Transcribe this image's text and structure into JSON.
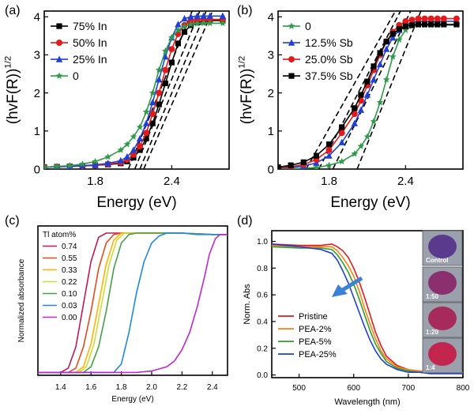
{
  "chart_data": [
    {
      "panel": "(a)",
      "type": "line",
      "xlabel": "Energy (eV)",
      "ylabel": "(hvF(R))",
      "ylabel_sup": "1/2",
      "xlim": [
        1.4,
        2.85
      ],
      "ylim": [
        0,
        4.15
      ],
      "xticks": [
        1.8,
        2.4
      ],
      "yticks": [
        0,
        1,
        2,
        3,
        4
      ],
      "legend_position": "top-left",
      "series": [
        {
          "name": "75% In",
          "color": "#000000",
          "marker": "square",
          "x": [
            1.4,
            1.5,
            1.6,
            1.7,
            1.8,
            1.9,
            2.0,
            2.05,
            2.1,
            2.15,
            2.2,
            2.25,
            2.3,
            2.35,
            2.4,
            2.45,
            2.5,
            2.55,
            2.6,
            2.65,
            2.7,
            2.8
          ],
          "y": [
            0.05,
            0.06,
            0.07,
            0.08,
            0.1,
            0.12,
            0.15,
            0.2,
            0.3,
            0.5,
            0.8,
            1.2,
            1.7,
            2.25,
            2.8,
            3.3,
            3.6,
            3.78,
            3.85,
            3.88,
            3.9,
            3.9
          ]
        },
        {
          "name": "50% In",
          "color": "#e31a1c",
          "marker": "circle",
          "x": [
            1.4,
            1.5,
            1.6,
            1.7,
            1.8,
            1.9,
            2.0,
            2.05,
            2.1,
            2.15,
            2.2,
            2.25,
            2.3,
            2.35,
            2.4,
            2.45,
            2.5,
            2.55,
            2.6,
            2.65,
            2.7,
            2.8
          ],
          "y": [
            0.05,
            0.06,
            0.07,
            0.08,
            0.1,
            0.13,
            0.17,
            0.25,
            0.38,
            0.6,
            0.95,
            1.45,
            2.0,
            2.6,
            3.15,
            3.55,
            3.78,
            3.88,
            3.92,
            3.93,
            3.93,
            3.93
          ]
        },
        {
          "name": "25% In",
          "color": "#1f3fd6",
          "marker": "triangle",
          "x": [
            1.4,
            1.5,
            1.6,
            1.7,
            1.8,
            1.9,
            2.0,
            2.05,
            2.1,
            2.15,
            2.2,
            2.25,
            2.3,
            2.35,
            2.4,
            2.45,
            2.5,
            2.55,
            2.6,
            2.65,
            2.7,
            2.8
          ],
          "y": [
            0.05,
            0.06,
            0.07,
            0.09,
            0.11,
            0.15,
            0.22,
            0.32,
            0.5,
            0.8,
            1.2,
            1.75,
            2.35,
            2.95,
            3.45,
            3.8,
            3.95,
            4.0,
            4.02,
            4.02,
            4.02,
            4.02
          ]
        },
        {
          "name": "0",
          "color": "#2e9b4a",
          "marker": "star",
          "x": [
            1.4,
            1.5,
            1.6,
            1.7,
            1.8,
            1.9,
            2.0,
            2.05,
            2.1,
            2.15,
            2.2,
            2.25,
            2.3,
            2.35,
            2.4,
            2.45,
            2.5,
            2.55,
            2.6,
            2.65,
            2.7,
            2.8
          ],
          "y": [
            0.05,
            0.07,
            0.09,
            0.13,
            0.2,
            0.32,
            0.5,
            0.65,
            0.85,
            1.1,
            1.5,
            2.0,
            2.6,
            3.1,
            3.45,
            3.65,
            3.75,
            3.8,
            3.82,
            3.83,
            3.83,
            3.83
          ]
        }
      ],
      "fit_lines": [
        {
          "x": [
            2.18,
            2.72
          ],
          "y": [
            0,
            4.15
          ]
        },
        {
          "x": [
            2.15,
            2.67
          ],
          "y": [
            0,
            4.15
          ]
        },
        {
          "x": [
            2.11,
            2.62
          ],
          "y": [
            0,
            4.15
          ]
        },
        {
          "x": [
            2.06,
            2.56
          ],
          "y": [
            0,
            4.15
          ]
        }
      ]
    },
    {
      "panel": "(b)",
      "type": "line",
      "xlabel": "Energy (eV)",
      "ylabel": "(hvF(R))",
      "ylabel_sup": "1/2",
      "xlim": [
        1.4,
        2.85
      ],
      "ylim": [
        0,
        4.15
      ],
      "xticks": [
        1.8,
        2.4
      ],
      "yticks": [
        0,
        1,
        2,
        3,
        4
      ],
      "legend_position": "top-left",
      "series": [
        {
          "name": "0",
          "color": "#2e9b4a",
          "marker": "star",
          "x": [
            1.4,
            1.5,
            1.6,
            1.7,
            1.8,
            1.9,
            2.0,
            2.05,
            2.1,
            2.15,
            2.2,
            2.25,
            2.3,
            2.35,
            2.4,
            2.45,
            2.5,
            2.55,
            2.6,
            2.65,
            2.7,
            2.8
          ],
          "y": [
            0.0,
            0.01,
            0.02,
            0.04,
            0.1,
            0.2,
            0.4,
            0.6,
            0.85,
            1.25,
            1.75,
            2.35,
            2.95,
            3.4,
            3.65,
            3.75,
            3.78,
            3.78,
            3.78,
            3.78,
            3.78,
            3.78
          ]
        },
        {
          "name": "12.5% Sb",
          "color": "#1f3fd6",
          "marker": "triangle",
          "x": [
            1.4,
            1.5,
            1.6,
            1.7,
            1.8,
            1.9,
            2.0,
            2.05,
            2.1,
            2.15,
            2.2,
            2.25,
            2.3,
            2.35,
            2.4,
            2.45,
            2.5,
            2.55,
            2.6,
            2.65,
            2.7,
            2.8
          ],
          "y": [
            0.02,
            0.04,
            0.08,
            0.16,
            0.35,
            0.7,
            1.2,
            1.55,
            1.95,
            2.35,
            2.75,
            3.15,
            3.45,
            3.65,
            3.78,
            3.85,
            3.88,
            3.88,
            3.88,
            3.88,
            3.88,
            3.88
          ]
        },
        {
          "name": "25.0% Sb",
          "color": "#e31a1c",
          "marker": "circle",
          "x": [
            1.4,
            1.5,
            1.6,
            1.7,
            1.8,
            1.9,
            2.0,
            2.05,
            2.1,
            2.15,
            2.2,
            2.25,
            2.3,
            2.35,
            2.4,
            2.45,
            2.5,
            2.55,
            2.6,
            2.65,
            2.7,
            2.8
          ],
          "y": [
            0.03,
            0.06,
            0.12,
            0.25,
            0.5,
            0.95,
            1.45,
            1.8,
            2.2,
            2.6,
            3.0,
            3.35,
            3.6,
            3.78,
            3.88,
            3.92,
            3.95,
            3.95,
            3.95,
            3.95,
            3.95,
            3.95
          ]
        },
        {
          "name": "37.5% Sb",
          "color": "#000000",
          "marker": "square",
          "x": [
            1.4,
            1.5,
            1.6,
            1.7,
            1.8,
            1.9,
            2.0,
            2.05,
            2.1,
            2.15,
            2.2,
            2.25,
            2.3,
            2.35,
            2.4,
            2.45,
            2.5,
            2.55,
            2.6,
            2.65,
            2.7,
            2.8
          ],
          "y": [
            0.05,
            0.1,
            0.18,
            0.35,
            0.65,
            1.1,
            1.6,
            1.95,
            2.3,
            2.7,
            3.05,
            3.35,
            3.55,
            3.68,
            3.75,
            3.78,
            3.8,
            3.8,
            3.8,
            3.8,
            3.8,
            3.8
          ]
        }
      ],
      "fit_lines": [
        {
          "x": [
            1.62,
            2.32
          ],
          "y": [
            0,
            4.15
          ]
        },
        {
          "x": [
            1.72,
            2.36
          ],
          "y": [
            0,
            4.15
          ]
        },
        {
          "x": [
            1.83,
            2.44
          ],
          "y": [
            0,
            4.15
          ]
        },
        {
          "x": [
            2.02,
            2.52
          ],
          "y": [
            0,
            4.15
          ]
        }
      ]
    },
    {
      "panel": "(c)",
      "type": "line",
      "xlabel": "Energy (eV)",
      "ylabel": "Normalized absorbance",
      "xlim": [
        1.25,
        2.5
      ],
      "ylim": [
        0,
        1.05
      ],
      "xticks": [
        1.4,
        1.6,
        1.8,
        2.0,
        2.2,
        2.4
      ],
      "yticks": [],
      "legend_title": "Tl atom%",
      "legend_position": "top-left",
      "series": [
        {
          "name": "0.74",
          "color": "#c2185b",
          "x": [
            1.25,
            1.4,
            1.45,
            1.5,
            1.55,
            1.6,
            1.65,
            1.7,
            1.75,
            1.8,
            2.0,
            2.2,
            2.4,
            2.5
          ],
          "y": [
            0.02,
            0.02,
            0.05,
            0.2,
            0.5,
            0.8,
            0.97,
            1.0,
            1.0,
            1.0,
            1.0,
            1.0,
            0.99,
            0.99
          ]
        },
        {
          "name": "0.55",
          "color": "#e64a19",
          "x": [
            1.25,
            1.45,
            1.5,
            1.55,
            1.6,
            1.65,
            1.7,
            1.75,
            1.8,
            1.85,
            2.0,
            2.2,
            2.4,
            2.5
          ],
          "y": [
            0.02,
            0.02,
            0.05,
            0.2,
            0.45,
            0.75,
            0.93,
            0.99,
            1.0,
            1.0,
            1.0,
            1.0,
            0.99,
            0.99
          ]
        },
        {
          "name": "0.33",
          "color": "#ffb300",
          "x": [
            1.25,
            1.5,
            1.55,
            1.6,
            1.65,
            1.7,
            1.75,
            1.8,
            1.85,
            1.9,
            2.0,
            2.2,
            2.4,
            2.5
          ],
          "y": [
            0.02,
            0.02,
            0.06,
            0.22,
            0.5,
            0.78,
            0.95,
            1.0,
            1.0,
            1.0,
            1.0,
            1.0,
            0.99,
            0.99
          ]
        },
        {
          "name": "0.22",
          "color": "#cddc39",
          "x": [
            1.25,
            1.52,
            1.57,
            1.62,
            1.67,
            1.72,
            1.77,
            1.82,
            1.87,
            1.92,
            2.0,
            2.2,
            2.4,
            2.5
          ],
          "y": [
            0.02,
            0.02,
            0.06,
            0.22,
            0.5,
            0.78,
            0.95,
            1.0,
            1.0,
            1.0,
            1.0,
            1.0,
            0.99,
            0.99
          ]
        },
        {
          "name": "0.10",
          "color": "#43a047",
          "x": [
            1.25,
            1.55,
            1.6,
            1.65,
            1.7,
            1.75,
            1.8,
            1.85,
            1.9,
            1.95,
            2.05,
            2.2,
            2.4,
            2.5
          ],
          "y": [
            0.02,
            0.02,
            0.06,
            0.2,
            0.45,
            0.75,
            0.93,
            0.99,
            1.0,
            1.0,
            1.0,
            1.0,
            0.99,
            0.99
          ]
        },
        {
          "name": "0.03",
          "color": "#1e88e5",
          "x": [
            1.25,
            1.75,
            1.8,
            1.85,
            1.9,
            1.95,
            2.0,
            2.05,
            2.1,
            2.15,
            2.2,
            2.3,
            2.4,
            2.5
          ],
          "y": [
            0.02,
            0.02,
            0.08,
            0.3,
            0.58,
            0.8,
            0.93,
            0.98,
            1.0,
            1.0,
            1.0,
            0.99,
            0.99,
            0.99
          ]
        },
        {
          "name": "0.00",
          "color": "#c026d3",
          "x": [
            1.25,
            1.9,
            2.0,
            2.1,
            2.15,
            2.2,
            2.25,
            2.3,
            2.35,
            2.38,
            2.42,
            2.45,
            2.5
          ],
          "y": [
            0.02,
            0.02,
            0.03,
            0.06,
            0.1,
            0.18,
            0.3,
            0.48,
            0.7,
            0.85,
            0.96,
            0.99,
            0.99
          ]
        }
      ]
    },
    {
      "panel": "(d)",
      "type": "line",
      "xlabel": "Wavelength (nm)",
      "ylabel": "Norm. Abs",
      "xlim": [
        450,
        800
      ],
      "ylim": [
        -0.02,
        1.08
      ],
      "xticks": [
        500,
        600,
        700,
        800
      ],
      "yticks": [
        0.0,
        0.2,
        0.4,
        0.6,
        0.8,
        1.0
      ],
      "ytick_labels": [
        "0.0",
        "0.2",
        "0.4",
        "0.6",
        "0.8",
        "1.0"
      ],
      "legend_position": "bottom-left",
      "series": [
        {
          "name": "Pristine",
          "color": "#e31a1c",
          "x": [
            450,
            500,
            540,
            560,
            570,
            580,
            590,
            600,
            610,
            620,
            630,
            640,
            650,
            660,
            680,
            700,
            720,
            740,
            760,
            780,
            800
          ],
          "y": [
            0.98,
            0.97,
            0.97,
            0.98,
            0.96,
            0.93,
            0.88,
            0.8,
            0.7,
            0.58,
            0.45,
            0.32,
            0.22,
            0.14,
            0.07,
            0.04,
            0.03,
            0.02,
            0.02,
            0.02,
            0.02
          ]
        },
        {
          "name": "PEA-2%",
          "color": "#ff7f0e",
          "x": [
            450,
            500,
            540,
            560,
            570,
            580,
            590,
            600,
            610,
            620,
            630,
            640,
            650,
            660,
            680,
            700,
            720,
            740,
            760,
            780,
            800
          ],
          "y": [
            0.97,
            0.96,
            0.96,
            0.96,
            0.93,
            0.88,
            0.82,
            0.74,
            0.63,
            0.5,
            0.38,
            0.27,
            0.18,
            0.12,
            0.06,
            0.04,
            0.03,
            0.02,
            0.02,
            0.02,
            0.02
          ]
        },
        {
          "name": "PEA-5%",
          "color": "#2ca02c",
          "x": [
            450,
            500,
            540,
            560,
            570,
            580,
            590,
            600,
            610,
            620,
            630,
            640,
            650,
            660,
            680,
            700,
            720,
            740,
            760,
            780,
            800
          ],
          "y": [
            0.96,
            0.95,
            0.95,
            0.94,
            0.9,
            0.84,
            0.77,
            0.68,
            0.57,
            0.45,
            0.33,
            0.23,
            0.16,
            0.1,
            0.05,
            0.03,
            0.02,
            0.02,
            0.02,
            0.02,
            0.02
          ]
        },
        {
          "name": "PEA-25%",
          "color": "#1f3fd6",
          "x": [
            450,
            500,
            540,
            560,
            570,
            580,
            590,
            600,
            610,
            620,
            630,
            640,
            650,
            660,
            680,
            700,
            720,
            740,
            760,
            780,
            800
          ],
          "y": [
            0.98,
            0.96,
            0.94,
            0.91,
            0.86,
            0.78,
            0.69,
            0.58,
            0.47,
            0.36,
            0.26,
            0.18,
            0.12,
            0.08,
            0.04,
            0.02,
            0.02,
            0.01,
            0.01,
            0.01,
            0.01
          ]
        }
      ],
      "inset_labels": [
        "Control",
        "1:50",
        "1:20",
        "1:4"
      ]
    }
  ]
}
